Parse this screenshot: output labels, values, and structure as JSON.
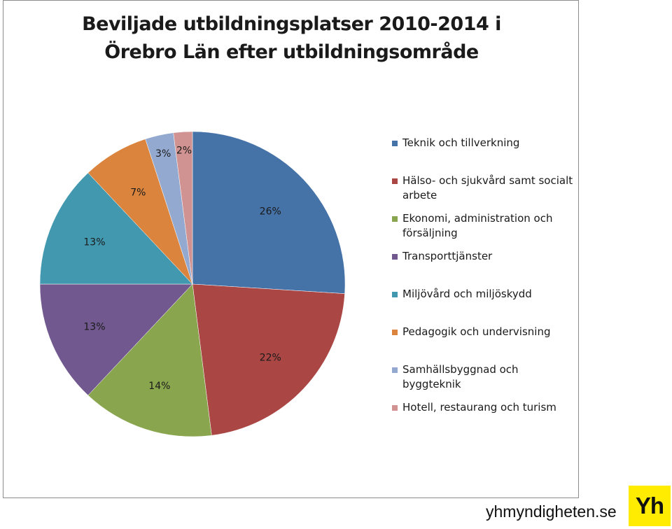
{
  "chart_data": {
    "type": "pie",
    "title_line1": "Beviljade utbildningsplatser 2010-2014 i",
    "title_line2": "Örebro Län efter utbildningsområde",
    "legend_position": "right",
    "slices": [
      {
        "name": "Teknik och tillverkning",
        "value": 26,
        "label": "26%",
        "color": "#4572a7"
      },
      {
        "name": "Hälso- och sjukvård samt socialt arbete",
        "value": 22,
        "label": "22%",
        "color": "#aa4643"
      },
      {
        "name": "Ekonomi, administration och försäljning",
        "value": 14,
        "label": "14%",
        "color": "#89a54e"
      },
      {
        "name": "Transporttjänster",
        "value": 13,
        "label": "13%",
        "color": "#71588f"
      },
      {
        "name": "Miljövård och miljöskydd",
        "value": 13,
        "label": "13%",
        "color": "#4198af"
      },
      {
        "name": "Pedagogik och undervisning",
        "value": 7,
        "label": "7%",
        "color": "#db843d"
      },
      {
        "name": "Samhällsbyggnad och byggteknik",
        "value": 3,
        "label": "3%",
        "color": "#93a9cf"
      },
      {
        "name": "Hotell, restaurang och turism",
        "value": 2,
        "label": "2%",
        "color": "#d19392"
      }
    ]
  },
  "footer": {
    "url": "yhmyndigheten.se",
    "logo_text": "Yh",
    "logo_color": "#ffec00"
  }
}
